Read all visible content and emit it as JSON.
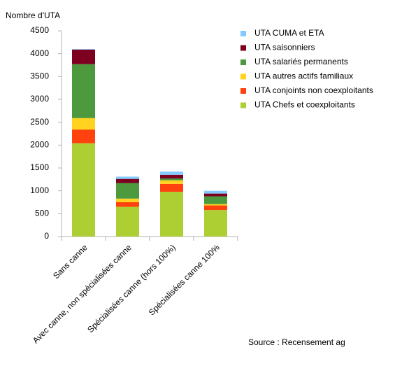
{
  "chart_data": {
    "type": "stacked_bar",
    "y_label": "Nombre d'UTA",
    "source": "Source : Recensement ag",
    "categories": [
      "Sans canne",
      "Avec canne, non spécialisées canne",
      "Spécialisées canne (hors 100%)",
      "Spécialisées canne 100%"
    ],
    "series": [
      {
        "name": "UTA Chefs et coexploitants",
        "color": "#aecf34",
        "values": [
          2040,
          650,
          980,
          580
        ]
      },
      {
        "name": "UTA conjoints non coexploitants",
        "color": "#ff420e",
        "values": [
          300,
          100,
          170,
          100
        ]
      },
      {
        "name": "UTA autres actifs familiaux",
        "color": "#ffd320",
        "values": [
          250,
          80,
          80,
          30
        ]
      },
      {
        "name": "UTA salariés permanents",
        "color": "#4c9a3d",
        "values": [
          1180,
          340,
          40,
          170
        ]
      },
      {
        "name": "UTA saisonniers",
        "color": "#7e0021",
        "values": [
          320,
          90,
          80,
          60
        ]
      },
      {
        "name": "UTA CUMA et ETA",
        "color": "#83caff",
        "values": [
          10,
          50,
          70,
          60
        ]
      }
    ],
    "ylim": [
      0,
      4500
    ],
    "yticks": [
      0,
      500,
      1000,
      1500,
      2000,
      2500,
      3000,
      3500,
      4000,
      4500
    ],
    "legend": "right"
  }
}
